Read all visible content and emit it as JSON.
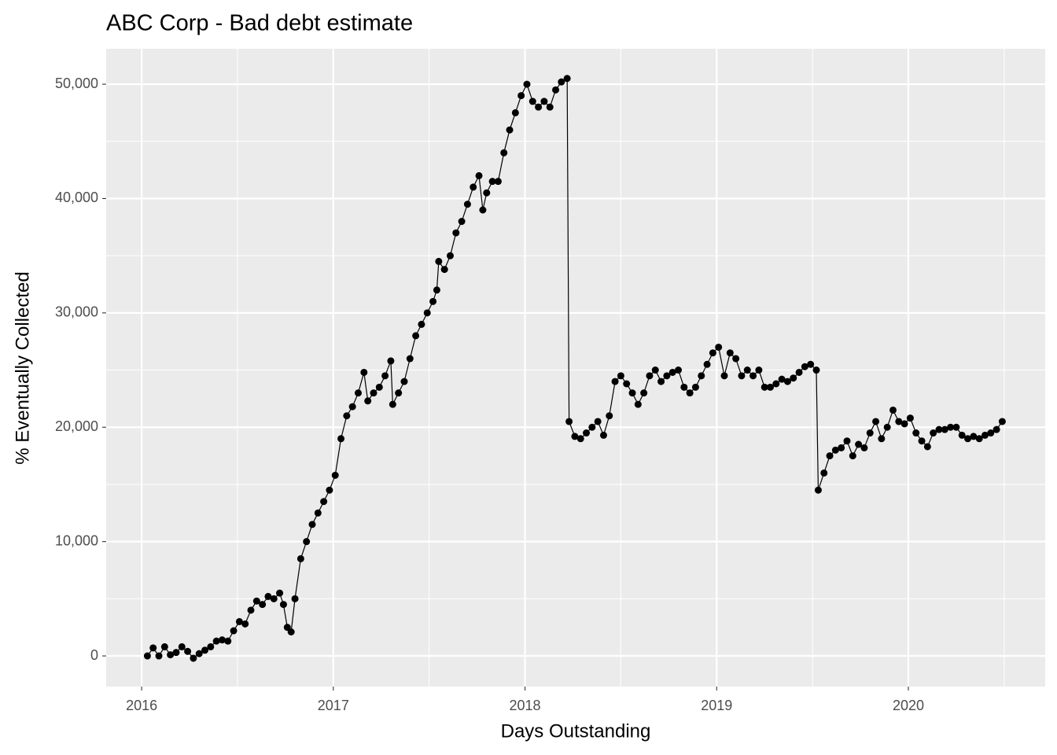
{
  "chart_data": {
    "type": "line_points",
    "title": "ABC Corp  - Bad debt estimate",
    "x_label": "Days Outstanding",
    "y_label": "% Eventually Collected",
    "color": "#000000",
    "grid": true,
    "xlim": [
      2015.815,
      2020.714
    ],
    "ylim": [
      -2680,
      53100
    ],
    "xticks": [
      2016,
      2017,
      2018,
      2019,
      2020
    ],
    "yticks": [
      0,
      {
        "value": 10000,
        "label": "10,000"
      },
      {
        "value": 20000,
        "label": "20,000"
      },
      {
        "value": 30000,
        "label": "30,000"
      },
      {
        "value": 40000,
        "label": "40,000"
      },
      {
        "value": 50000,
        "label": "50,000"
      }
    ],
    "x": [
      2016.03,
      2016.06,
      2016.09,
      2016.12,
      2016.15,
      2016.18,
      2016.21,
      2016.24,
      2016.27,
      2016.3,
      2016.33,
      2016.36,
      2016.39,
      2016.42,
      2016.45,
      2016.48,
      2016.51,
      2016.54,
      2016.57,
      2016.6,
      2016.63,
      2016.66,
      2016.69,
      2016.72,
      2016.74,
      2016.76,
      2016.78,
      2016.8,
      2016.83,
      2016.86,
      2016.89,
      2016.92,
      2016.95,
      2016.98,
      2017.01,
      2017.04,
      2017.07,
      2017.1,
      2017.13,
      2017.16,
      2017.18,
      2017.21,
      2017.24,
      2017.27,
      2017.3,
      2017.31,
      2017.34,
      2017.37,
      2017.4,
      2017.43,
      2017.46,
      2017.49,
      2017.52,
      2017.54,
      2017.55,
      2017.58,
      2017.61,
      2017.64,
      2017.67,
      2017.7,
      2017.73,
      2017.76,
      2017.78,
      2017.8,
      2017.83,
      2017.86,
      2017.89,
      2017.92,
      2017.95,
      2017.98,
      2018.01,
      2018.04,
      2018.07,
      2018.1,
      2018.13,
      2018.16,
      2018.19,
      2018.22,
      2018.23,
      2018.26,
      2018.29,
      2018.32,
      2018.35,
      2018.38,
      2018.41,
      2018.44,
      2018.47,
      2018.5,
      2018.53,
      2018.56,
      2018.59,
      2018.62,
      2018.65,
      2018.68,
      2018.71,
      2018.74,
      2018.77,
      2018.8,
      2018.83,
      2018.86,
      2018.89,
      2018.92,
      2018.95,
      2018.98,
      2019.01,
      2019.04,
      2019.07,
      2019.1,
      2019.13,
      2019.16,
      2019.19,
      2019.22,
      2019.25,
      2019.28,
      2019.31,
      2019.34,
      2019.37,
      2019.4,
      2019.43,
      2019.46,
      2019.49,
      2019.52,
      2019.53,
      2019.56,
      2019.59,
      2019.62,
      2019.65,
      2019.68,
      2019.71,
      2019.74,
      2019.77,
      2019.8,
      2019.83,
      2019.86,
      2019.89,
      2019.92,
      2019.95,
      2019.98,
      2020.01,
      2020.04,
      2020.07,
      2020.1,
      2020.13,
      2020.16,
      2020.19,
      2020.22,
      2020.25,
      2020.28,
      2020.31,
      2020.34,
      2020.37,
      2020.4,
      2020.43,
      2020.46,
      2020.49
    ],
    "values": [
      0,
      700,
      0,
      800,
      100,
      300,
      800,
      400,
      -200,
      200,
      500,
      800,
      1300,
      1400,
      1300,
      2200,
      3000,
      2800,
      4000,
      4800,
      4500,
      5200,
      5000,
      5500,
      4500,
      2500,
      2100,
      5000,
      8500,
      10000,
      11500,
      12500,
      13500,
      14500,
      15800,
      19000,
      21000,
      21800,
      23000,
      24800,
      22300,
      23000,
      23500,
      24500,
      25800,
      22000,
      23000,
      24000,
      26000,
      28000,
      29000,
      30000,
      31000,
      32000,
      34500,
      33800,
      35000,
      37000,
      38000,
      39500,
      41000,
      42000,
      39000,
      40500,
      41500,
      41500,
      44000,
      46000,
      47500,
      49000,
      50000,
      48500,
      48000,
      48500,
      48000,
      49500,
      50200,
      50500,
      20500,
      19200,
      19000,
      19500,
      20000,
      20500,
      19300,
      21000,
      24000,
      24500,
      23800,
      23000,
      22000,
      23000,
      24500,
      25000,
      24000,
      24500,
      24800,
      25000,
      23500,
      23000,
      23500,
      24500,
      25500,
      26500,
      27000,
      24500,
      26500,
      26000,
      24500,
      25000,
      24500,
      25000,
      23500,
      23500,
      23800,
      24200,
      24000,
      24300,
      24800,
      25300,
      25500,
      25000,
      14500,
      16000,
      17500,
      18000,
      18200,
      18800,
      17500,
      18500,
      18200,
      19500,
      20500,
      19000,
      20000,
      21500,
      20500,
      20300,
      20800,
      19500,
      18800,
      18300,
      19500,
      19800,
      19800,
      20000,
      20000,
      19300,
      19000,
      19200,
      19000,
      19300,
      19500,
      19800,
      20500
    ]
  }
}
